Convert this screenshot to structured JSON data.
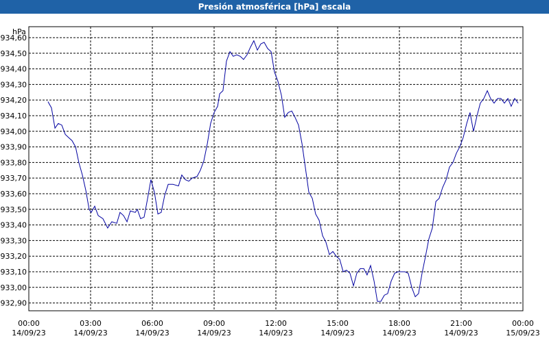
{
  "chart_data": {
    "type": "line",
    "title": "Presión atmosférica [hPa] escala",
    "y_label": "hPa",
    "color": "#0000a0",
    "grid": true,
    "xlim": [
      0,
      24
    ],
    "ylim": [
      932.85,
      934.67
    ],
    "xticks": [
      {
        "value": 0,
        "label": "00:00 14/09/23"
      },
      {
        "value": 3,
        "label": "03:00 14/09/23"
      },
      {
        "value": 6,
        "label": "06:00 14/09/23"
      },
      {
        "value": 9,
        "label": "09:00 14/09/23"
      },
      {
        "value": 12,
        "label": "12:00 14/09/23"
      },
      {
        "value": 15,
        "label": "15:00 14/09/23"
      },
      {
        "value": 18,
        "label": "18:00 14/09/23"
      },
      {
        "value": 21,
        "label": "21:00 14/09/23"
      },
      {
        "value": 24,
        "label": "00:00 15/09/23"
      }
    ],
    "yticks": [
      {
        "value": 932.9,
        "label": "932,90"
      },
      {
        "value": 933.0,
        "label": "933,00"
      },
      {
        "value": 933.1,
        "label": "933,10"
      },
      {
        "value": 933.2,
        "label": "933,20"
      },
      {
        "value": 933.3,
        "label": "933,30"
      },
      {
        "value": 933.4,
        "label": "933,40"
      },
      {
        "value": 933.5,
        "label": "933,50"
      },
      {
        "value": 933.6,
        "label": "933,60"
      },
      {
        "value": 933.7,
        "label": "933,70"
      },
      {
        "value": 933.8,
        "label": "933,80"
      },
      {
        "value": 933.9,
        "label": "933,90"
      },
      {
        "value": 934.0,
        "label": "934,00"
      },
      {
        "value": 934.1,
        "label": "934,10"
      },
      {
        "value": 934.2,
        "label": "934,20"
      },
      {
        "value": 934.3,
        "label": "934,30"
      },
      {
        "value": 934.4,
        "label": "934,40"
      },
      {
        "value": 934.5,
        "label": "934,50"
      },
      {
        "value": 934.6,
        "label": "934,60"
      }
    ],
    "x": [
      0.93,
      1.1,
      1.27,
      1.43,
      1.6,
      1.77,
      1.93,
      2.1,
      2.27,
      2.43,
      2.6,
      2.77,
      2.93,
      3.03,
      3.2,
      3.37,
      3.6,
      3.83,
      4.03,
      4.27,
      4.43,
      4.6,
      4.77,
      4.93,
      5.17,
      5.27,
      5.43,
      5.6,
      5.77,
      5.93,
      6.1,
      6.27,
      6.43,
      6.6,
      6.77,
      7.0,
      7.27,
      7.43,
      7.6,
      7.77,
      7.93,
      8.17,
      8.33,
      8.5,
      8.67,
      8.83,
      9.0,
      9.17,
      9.27,
      9.43,
      9.6,
      9.77,
      9.93,
      10.1,
      10.27,
      10.43,
      10.6,
      10.77,
      10.93,
      11.1,
      11.27,
      11.43,
      11.6,
      11.77,
      11.93,
      12.1,
      12.27,
      12.43,
      12.6,
      12.77,
      12.93,
      13.1,
      13.27,
      13.43,
      13.6,
      13.77,
      13.93,
      14.1,
      14.27,
      14.43,
      14.6,
      14.77,
      14.93,
      15.1,
      15.27,
      15.43,
      15.6,
      15.77,
      15.93,
      16.1,
      16.27,
      16.43,
      16.6,
      16.77,
      16.93,
      17.1,
      17.27,
      17.43,
      17.6,
      17.77,
      17.93,
      18.1,
      18.27,
      18.43,
      18.6,
      18.77,
      18.93,
      19.1,
      19.27,
      19.43,
      19.6,
      19.77,
      19.93,
      20.1,
      20.27,
      20.43,
      20.6,
      20.77,
      20.93,
      21.1,
      21.27,
      21.43,
      21.6,
      21.77,
      21.93,
      22.1,
      22.27,
      22.43,
      22.6,
      22.77,
      22.93,
      23.1,
      23.27,
      23.43,
      23.6,
      23.77
    ],
    "values": [
      934.19,
      934.15,
      934.02,
      934.05,
      934.04,
      933.98,
      933.96,
      933.94,
      933.9,
      933.8,
      933.72,
      933.62,
      933.5,
      933.48,
      933.52,
      933.46,
      933.44,
      933.38,
      933.42,
      933.41,
      933.48,
      933.46,
      933.42,
      933.49,
      933.48,
      933.5,
      933.44,
      933.45,
      933.57,
      933.69,
      933.61,
      933.47,
      933.48,
      933.59,
      933.66,
      933.66,
      933.65,
      933.72,
      933.69,
      933.68,
      933.7,
      933.71,
      933.75,
      933.81,
      933.92,
      934.05,
      934.12,
      934.16,
      934.24,
      934.26,
      934.45,
      934.51,
      934.48,
      934.49,
      934.48,
      934.46,
      934.49,
      934.54,
      934.58,
      934.52,
      934.56,
      934.57,
      934.53,
      934.51,
      934.38,
      934.32,
      934.23,
      934.09,
      934.12,
      934.13,
      934.09,
      934.04,
      933.92,
      933.77,
      933.61,
      933.57,
      933.47,
      933.43,
      933.33,
      933.29,
      933.21,
      933.23,
      933.2,
      933.18,
      933.1,
      933.11,
      933.09,
      933.01,
      933.09,
      933.12,
      933.12,
      933.08,
      933.14,
      933.04,
      932.91,
      932.91,
      932.95,
      932.96,
      933.04,
      933.09,
      933.1,
      933.1,
      933.1,
      933.09,
      933.0,
      932.94,
      932.96,
      933.09,
      933.2,
      933.31,
      933.38,
      933.55,
      933.57,
      933.64,
      933.69,
      933.77,
      933.8,
      933.86,
      933.9,
      933.96,
      934.05,
      934.12,
      934.0,
      934.1,
      934.18,
      934.21,
      934.26,
      934.21,
      934.18,
      934.21,
      934.21,
      934.18,
      934.21,
      934.16,
      934.21,
      934.18
    ]
  }
}
